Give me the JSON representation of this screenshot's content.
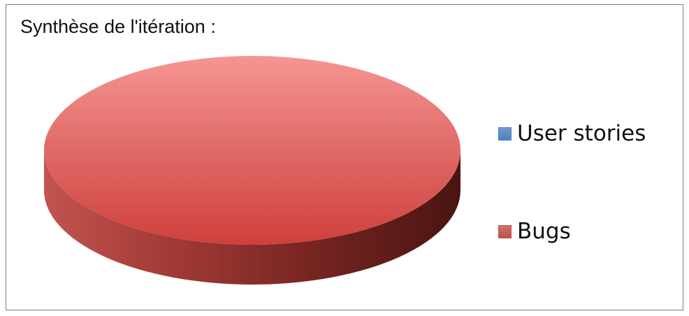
{
  "chart_data": {
    "type": "pie",
    "title": "Synthèse de l'itération :",
    "style": "3d",
    "legend_position": "right",
    "series": [
      {
        "name": "User stories",
        "value": 0,
        "color": "#4f81bd"
      },
      {
        "name": "Bugs",
        "value": 1,
        "color": "#c0504d"
      }
    ]
  }
}
